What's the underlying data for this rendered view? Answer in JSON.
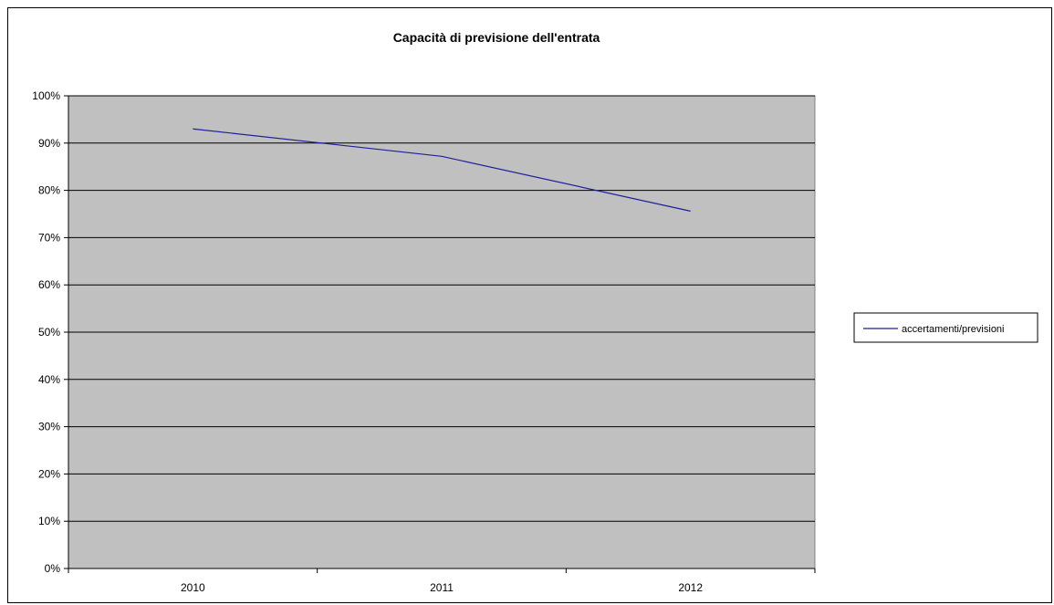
{
  "chart_data": {
    "type": "line",
    "title": "Capacità di previsione dell'entrata",
    "xlabel": "",
    "ylabel": "",
    "categories": [
      "2010",
      "2011",
      "2012"
    ],
    "series": [
      {
        "name": "accertamenti/previsioni",
        "values": [
          0.93,
          0.872,
          0.756
        ],
        "color": "#1f1f9c"
      }
    ],
    "ylim": [
      0,
      1
    ],
    "y_ticks": [
      0,
      0.1,
      0.2,
      0.3,
      0.4,
      0.5,
      0.6,
      0.7,
      0.8,
      0.9,
      1.0
    ],
    "y_tick_labels": [
      "0%",
      "10%",
      "20%",
      "30%",
      "40%",
      "50%",
      "60%",
      "70%",
      "80%",
      "90%",
      "100%"
    ],
    "grid": true,
    "legend_position": "right",
    "colors": {
      "plot_background": "#c0c0c0",
      "gridline": "#000000",
      "series_line": "#1f1f9c"
    }
  }
}
